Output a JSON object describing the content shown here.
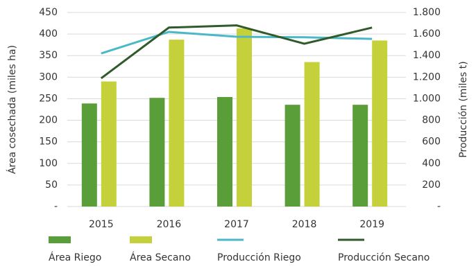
{
  "chart_data": {
    "type": "bar",
    "categories": [
      "2015",
      "2016",
      "2017",
      "2018",
      "2019"
    ],
    "ylabel": "Área cosechada (miles ha)",
    "y2label": "Producción (miles t)",
    "ylim": [
      0,
      450
    ],
    "yticks": [
      {
        "value": 0,
        "label": "-"
      },
      50,
      100,
      150,
      200,
      250,
      300,
      350,
      400,
      450
    ],
    "y2lim": [
      0,
      1800
    ],
    "y2ticks": [
      {
        "value": 0,
        "label": "-"
      },
      200,
      400,
      600,
      800,
      {
        "value": 1000,
        "label": "1.000"
      },
      {
        "value": 1200,
        "label": "1.200"
      },
      {
        "value": 1400,
        "label": "1.400"
      },
      {
        "value": 1600,
        "label": "1.600"
      },
      {
        "value": 1800,
        "label": "1.800"
      }
    ],
    "series": [
      {
        "name": "Área Riego",
        "type": "bar",
        "color": "#5a9e3a",
        "values": [
          239,
          252,
          254,
          236,
          236
        ]
      },
      {
        "name": "Área Secano",
        "type": "bar",
        "color": "#c4d13a",
        "values": [
          290,
          387,
          413,
          335,
          385
        ]
      },
      {
        "name": "Producción Riego",
        "type": "line",
        "axis": "y2",
        "color": "#4bb8c8",
        "values": [
          1420,
          1620,
          1575,
          1570,
          1555
        ]
      },
      {
        "name": "Producción Secano",
        "type": "line",
        "axis": "y2",
        "color": "#2f5a2a",
        "values": [
          1190,
          1660,
          1680,
          1510,
          1660
        ]
      }
    ],
    "legend": "bottom"
  }
}
